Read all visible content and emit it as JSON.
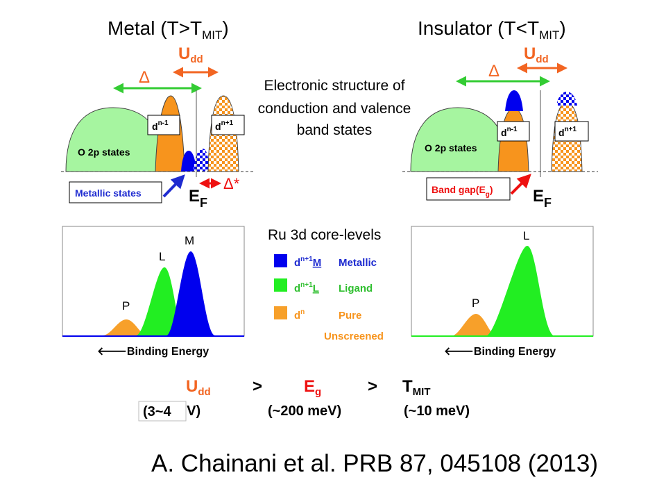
{
  "colors": {
    "o2p": "#a6f5a0",
    "orange": "#f7941d",
    "blue": "#0000ee",
    "green": "#22ee22",
    "red": "#ee1111",
    "arrow_green": "#33cc33",
    "arrow_orange": "#f26522",
    "text_blue": "#1e2bd0",
    "text_green": "#2fbf2f",
    "text_orange": "#f7941d"
  },
  "metal": {
    "title_main": "Metal (T>T",
    "title_sub": "MIT",
    "title_close": ")",
    "udd_main": "U",
    "udd_sub": "dd",
    "delta": "Δ",
    "o2p_label": "O 2p states",
    "dn_minus_base": "d",
    "dn_minus_sup": "n-1",
    "dn_plus_base": "d",
    "dn_plus_sup": "n+1",
    "metallic_states": "Metallic states",
    "ef_main": "E",
    "ef_sub": "F",
    "delta_star": "Δ*"
  },
  "insulator": {
    "title_main": "Insulator (T<T",
    "title_sub": "MIT",
    "title_close": ")",
    "udd_main": "U",
    "udd_sub": "dd",
    "delta": "Δ",
    "o2p_label": "O 2p states",
    "dn_minus_base": "d",
    "dn_minus_sup": "n-1",
    "dn_plus_base": "d",
    "dn_plus_sup": "n+1",
    "band_gap_main": "Band gap(E",
    "band_gap_sub": "g",
    "band_gap_close": ")",
    "ef_main": "E",
    "ef_sub": "F"
  },
  "center_text": {
    "line1": "Electronic structure of",
    "line2": "conduction and valence",
    "line3": "band states"
  },
  "legend": {
    "title": "Ru 3d core-levels",
    "items": [
      {
        "base": "d",
        "sup": "n+1",
        "letter": "M",
        "name": "Metallic",
        "color_key": "blue"
      },
      {
        "base": "d",
        "sup": "n+1",
        "letter": "L",
        "name": "Ligand",
        "color_key": "green"
      },
      {
        "base": "d",
        "sup": "n",
        "letter": "",
        "name": "Pure",
        "name2": "Unscreened",
        "color_key": "orange"
      }
    ]
  },
  "spectrum_left": {
    "peak_p": "P",
    "peak_l": "L",
    "peak_m": "M",
    "axis_label": "🡐Binding Energy"
  },
  "spectrum_right": {
    "peak_p": "P",
    "peak_l": "L",
    "axis_label": "🡐Binding Energy"
  },
  "relation": {
    "udd_main": "U",
    "udd_sub": "dd",
    "gt1": ">",
    "eg_main": "E",
    "eg_sub": "g",
    "gt2": ">",
    "tmit_main": "T",
    "tmit_sub": "MIT",
    "val_udd_a": "(3~4",
    "val_udd_b": "eV)",
    "val_eg": "(~200 meV)",
    "val_tmit": "(~10 meV)"
  },
  "citation": "A. Chainani et al. PRB 87, 045108 (2013)"
}
